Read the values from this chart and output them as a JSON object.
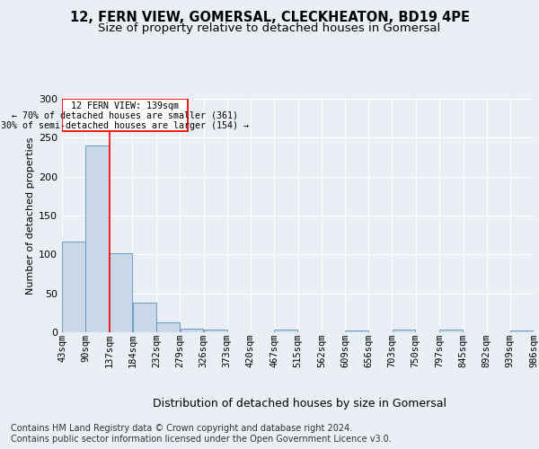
{
  "title1": "12, FERN VIEW, GOMERSAL, CLECKHEATON, BD19 4PE",
  "title2": "Size of property relative to detached houses in Gomersal",
  "xlabel": "Distribution of detached houses by size in Gomersal",
  "ylabel": "Number of detached properties",
  "footer1": "Contains HM Land Registry data © Crown copyright and database right 2024.",
  "footer2": "Contains public sector information licensed under the Open Government Licence v3.0.",
  "annotation_line1": "12 FERN VIEW: 139sqm",
  "annotation_line2": "← 70% of detached houses are smaller (361)",
  "annotation_line3": "30% of semi-detached houses are larger (154) →",
  "bar_color": "#c8d8e8",
  "bar_edge_color": "#5b8db8",
  "red_line_x": 139,
  "bins": [
    43,
    90,
    137,
    184,
    232,
    279,
    326,
    373,
    420,
    467,
    515,
    562,
    609,
    656,
    703,
    750,
    797,
    845,
    892,
    939,
    986
  ],
  "bin_labels": [
    "43sqm",
    "90sqm",
    "137sqm",
    "184sqm",
    "232sqm",
    "279sqm",
    "326sqm",
    "373sqm",
    "420sqm",
    "467sqm",
    "515sqm",
    "562sqm",
    "609sqm",
    "656sqm",
    "703sqm",
    "750sqm",
    "797sqm",
    "845sqm",
    "892sqm",
    "939sqm",
    "986sqm"
  ],
  "bar_heights": [
    116,
    240,
    101,
    38,
    13,
    5,
    4,
    0,
    0,
    4,
    0,
    0,
    2,
    0,
    3,
    0,
    3,
    0,
    0,
    2
  ],
  "ylim": [
    0,
    300
  ],
  "yticks": [
    0,
    50,
    100,
    150,
    200,
    250,
    300
  ],
  "background_color": "#eaeff5",
  "plot_bg_color": "#eaeff5",
  "grid_color": "#ffffff",
  "title1_fontsize": 10.5,
  "title2_fontsize": 9.5,
  "axis_fontsize": 8,
  "xlabel_fontsize": 9,
  "footer_fontsize": 7
}
